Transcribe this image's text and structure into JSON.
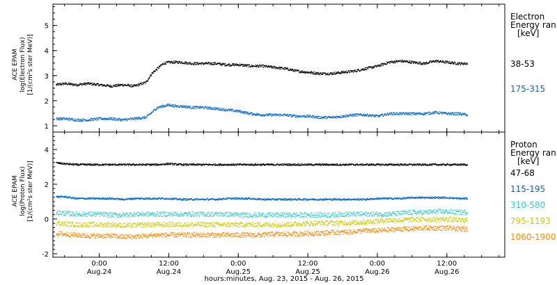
{
  "x_title": "hours:minutes, Aug. 23, 2015 - Aug. 26, 2015",
  "x_ticks": [
    {
      "x": 18,
      "time": "0:00",
      "date": "Aug.24"
    },
    {
      "x": 30,
      "time": "12:00",
      "date": "Aug.24"
    },
    {
      "x": 42,
      "time": "0:00",
      "date": "Aug.25"
    },
    {
      "x": 54,
      "time": "12:00",
      "date": "Aug.25"
    },
    {
      "x": 66,
      "time": "0:00",
      "date": "Aug.26"
    },
    {
      "x": 78,
      "time": "12:00",
      "date": "Aug.26"
    }
  ],
  "xlim": [
    10,
    88
  ],
  "chart_data": [
    {
      "type": "scatter",
      "panel": "electron",
      "ylabel_lines": [
        "ACE EPAM",
        "log(Electron Flux)",
        "[1/(cm²s ster MeV)]"
      ],
      "ylim": [
        0.75,
        5.85
      ],
      "yticks": [
        1,
        2,
        3,
        4,
        5
      ],
      "legend_header": [
        "Electron",
        "Energy ran",
        "[keV]"
      ],
      "series": [
        {
          "name": "38-53",
          "color": "#000000",
          "x": [
            10.5,
            12,
            14,
            16,
            18,
            20,
            22,
            24,
            26,
            27,
            28,
            29,
            30,
            31,
            32,
            34,
            36,
            38,
            40,
            42,
            44,
            46,
            48,
            50,
            52,
            54,
            56,
            58,
            60,
            62,
            64,
            66,
            68,
            70,
            72,
            74,
            76,
            78,
            80,
            81.5
          ],
          "y": [
            2.65,
            2.7,
            2.65,
            2.7,
            2.65,
            2.6,
            2.65,
            2.6,
            2.75,
            3.1,
            3.3,
            3.5,
            3.55,
            3.55,
            3.55,
            3.5,
            3.5,
            3.5,
            3.45,
            3.45,
            3.4,
            3.4,
            3.35,
            3.3,
            3.2,
            3.15,
            3.1,
            3.1,
            3.15,
            3.2,
            3.3,
            3.4,
            3.55,
            3.6,
            3.55,
            3.5,
            3.6,
            3.55,
            3.5,
            3.5
          ]
        },
        {
          "name": "175-315",
          "color": "#0066cc",
          "x": [
            10.5,
            12,
            14,
            16,
            18,
            20,
            22,
            24,
            26,
            27,
            28,
            29,
            30,
            31,
            32,
            34,
            36,
            38,
            40,
            42,
            44,
            46,
            48,
            50,
            52,
            54,
            56,
            58,
            60,
            62,
            64,
            66,
            68,
            70,
            72,
            74,
            76,
            78,
            80,
            81.5
          ],
          "y": [
            1.3,
            1.3,
            1.25,
            1.25,
            1.3,
            1.3,
            1.25,
            1.3,
            1.35,
            1.55,
            1.75,
            1.8,
            1.85,
            1.8,
            1.8,
            1.75,
            1.75,
            1.7,
            1.65,
            1.6,
            1.5,
            1.45,
            1.45,
            1.45,
            1.4,
            1.4,
            1.35,
            1.35,
            1.4,
            1.45,
            1.45,
            1.4,
            1.5,
            1.5,
            1.5,
            1.5,
            1.55,
            1.5,
            1.5,
            1.45
          ]
        }
      ]
    },
    {
      "type": "scatter",
      "panel": "proton",
      "ylabel_lines": [
        "ACE EPAM",
        "log(Proton Flux)",
        "[1/(cm²s ster MeV)]"
      ],
      "ylim": [
        -2.2,
        5.0
      ],
      "yticks": [
        -2,
        0,
        2,
        4
      ],
      "legend_header": [
        "Proton",
        "Energy ran",
        "[keV]"
      ],
      "series": [
        {
          "name": "47-68",
          "color": "#000000",
          "x": [
            10.5,
            12,
            14,
            16,
            18,
            20,
            22,
            24,
            26,
            28,
            30,
            32,
            34,
            36,
            38,
            40,
            42,
            44,
            46,
            48,
            50,
            52,
            54,
            56,
            58,
            60,
            62,
            64,
            66,
            68,
            70,
            72,
            74,
            76,
            78,
            80,
            81.5
          ],
          "y": [
            3.25,
            3.2,
            3.15,
            3.15,
            3.15,
            3.15,
            3.15,
            3.15,
            3.15,
            3.15,
            3.2,
            3.15,
            3.15,
            3.15,
            3.15,
            3.15,
            3.15,
            3.15,
            3.15,
            3.15,
            3.15,
            3.15,
            3.15,
            3.15,
            3.15,
            3.15,
            3.15,
            3.15,
            3.15,
            3.15,
            3.15,
            3.15,
            3.15,
            3.15,
            3.15,
            3.15,
            3.15
          ]
        },
        {
          "name": "115-195",
          "color": "#0066cc",
          "x": [
            10.5,
            12,
            14,
            16,
            18,
            20,
            22,
            24,
            26,
            28,
            30,
            32,
            34,
            36,
            38,
            40,
            42,
            44,
            46,
            48,
            50,
            52,
            54,
            56,
            58,
            60,
            62,
            64,
            66,
            68,
            70,
            72,
            74,
            76,
            78,
            80,
            81.5
          ],
          "y": [
            1.3,
            1.3,
            1.2,
            1.2,
            1.2,
            1.2,
            1.15,
            1.2,
            1.2,
            1.2,
            1.2,
            1.15,
            1.15,
            1.15,
            1.15,
            1.2,
            1.2,
            1.2,
            1.15,
            1.15,
            1.15,
            1.15,
            1.15,
            1.15,
            1.15,
            1.15,
            1.15,
            1.15,
            1.2,
            1.2,
            1.2,
            1.25,
            1.25,
            1.25,
            1.25,
            1.2,
            1.2
          ]
        },
        {
          "name": "310-580",
          "color": "#33cccc",
          "x": [
            10.5,
            12,
            14,
            16,
            18,
            20,
            22,
            24,
            26,
            28,
            30,
            32,
            34,
            36,
            38,
            40,
            42,
            44,
            46,
            48,
            50,
            52,
            54,
            56,
            58,
            60,
            62,
            64,
            66,
            68,
            70,
            72,
            74,
            76,
            78,
            80,
            81.5
          ],
          "y": [
            0.4,
            0.35,
            0.3,
            0.3,
            0.3,
            0.25,
            0.25,
            0.3,
            0.3,
            0.3,
            0.3,
            0.3,
            0.3,
            0.3,
            0.3,
            0.3,
            0.25,
            0.25,
            0.25,
            0.25,
            0.25,
            0.25,
            0.25,
            0.25,
            0.25,
            0.3,
            0.3,
            0.3,
            0.3,
            0.3,
            0.35,
            0.4,
            0.4,
            0.45,
            0.45,
            0.4,
            0.4
          ]
        },
        {
          "name": "795-1193",
          "color": "#cccc00",
          "x": [
            10.5,
            12,
            14,
            16,
            18,
            20,
            22,
            24,
            26,
            28,
            30,
            32,
            34,
            36,
            38,
            40,
            42,
            44,
            46,
            48,
            50,
            52,
            54,
            56,
            58,
            60,
            62,
            64,
            66,
            68,
            70,
            72,
            74,
            76,
            78,
            80,
            81.5
          ],
          "y": [
            -0.2,
            -0.25,
            -0.3,
            -0.3,
            -0.3,
            -0.3,
            -0.35,
            -0.35,
            -0.3,
            -0.3,
            -0.3,
            -0.3,
            -0.3,
            -0.3,
            -0.3,
            -0.3,
            -0.3,
            -0.3,
            -0.3,
            -0.3,
            -0.3,
            -0.25,
            -0.25,
            -0.2,
            -0.2,
            -0.2,
            -0.2,
            -0.15,
            -0.1,
            -0.05,
            -0.05,
            0.0,
            0.0,
            0.0,
            0.0,
            -0.05,
            -0.05
          ]
        },
        {
          "name": "1060-1900",
          "color": "#ff8800",
          "x": [
            10.5,
            12,
            14,
            16,
            18,
            20,
            22,
            24,
            26,
            28,
            30,
            32,
            34,
            36,
            38,
            40,
            42,
            44,
            46,
            48,
            50,
            52,
            54,
            56,
            58,
            60,
            62,
            64,
            66,
            68,
            70,
            72,
            74,
            76,
            78,
            80,
            81.5
          ],
          "y": [
            -0.8,
            -0.85,
            -0.9,
            -0.95,
            -0.95,
            -0.95,
            -1.0,
            -1.0,
            -0.95,
            -0.9,
            -0.9,
            -0.9,
            -0.9,
            -0.9,
            -0.9,
            -0.9,
            -0.9,
            -0.9,
            -0.9,
            -0.85,
            -0.85,
            -0.85,
            -0.8,
            -0.8,
            -0.75,
            -0.75,
            -0.7,
            -0.65,
            -0.65,
            -0.6,
            -0.55,
            -0.55,
            -0.5,
            -0.5,
            -0.5,
            -0.55,
            -0.55
          ]
        }
      ]
    }
  ]
}
